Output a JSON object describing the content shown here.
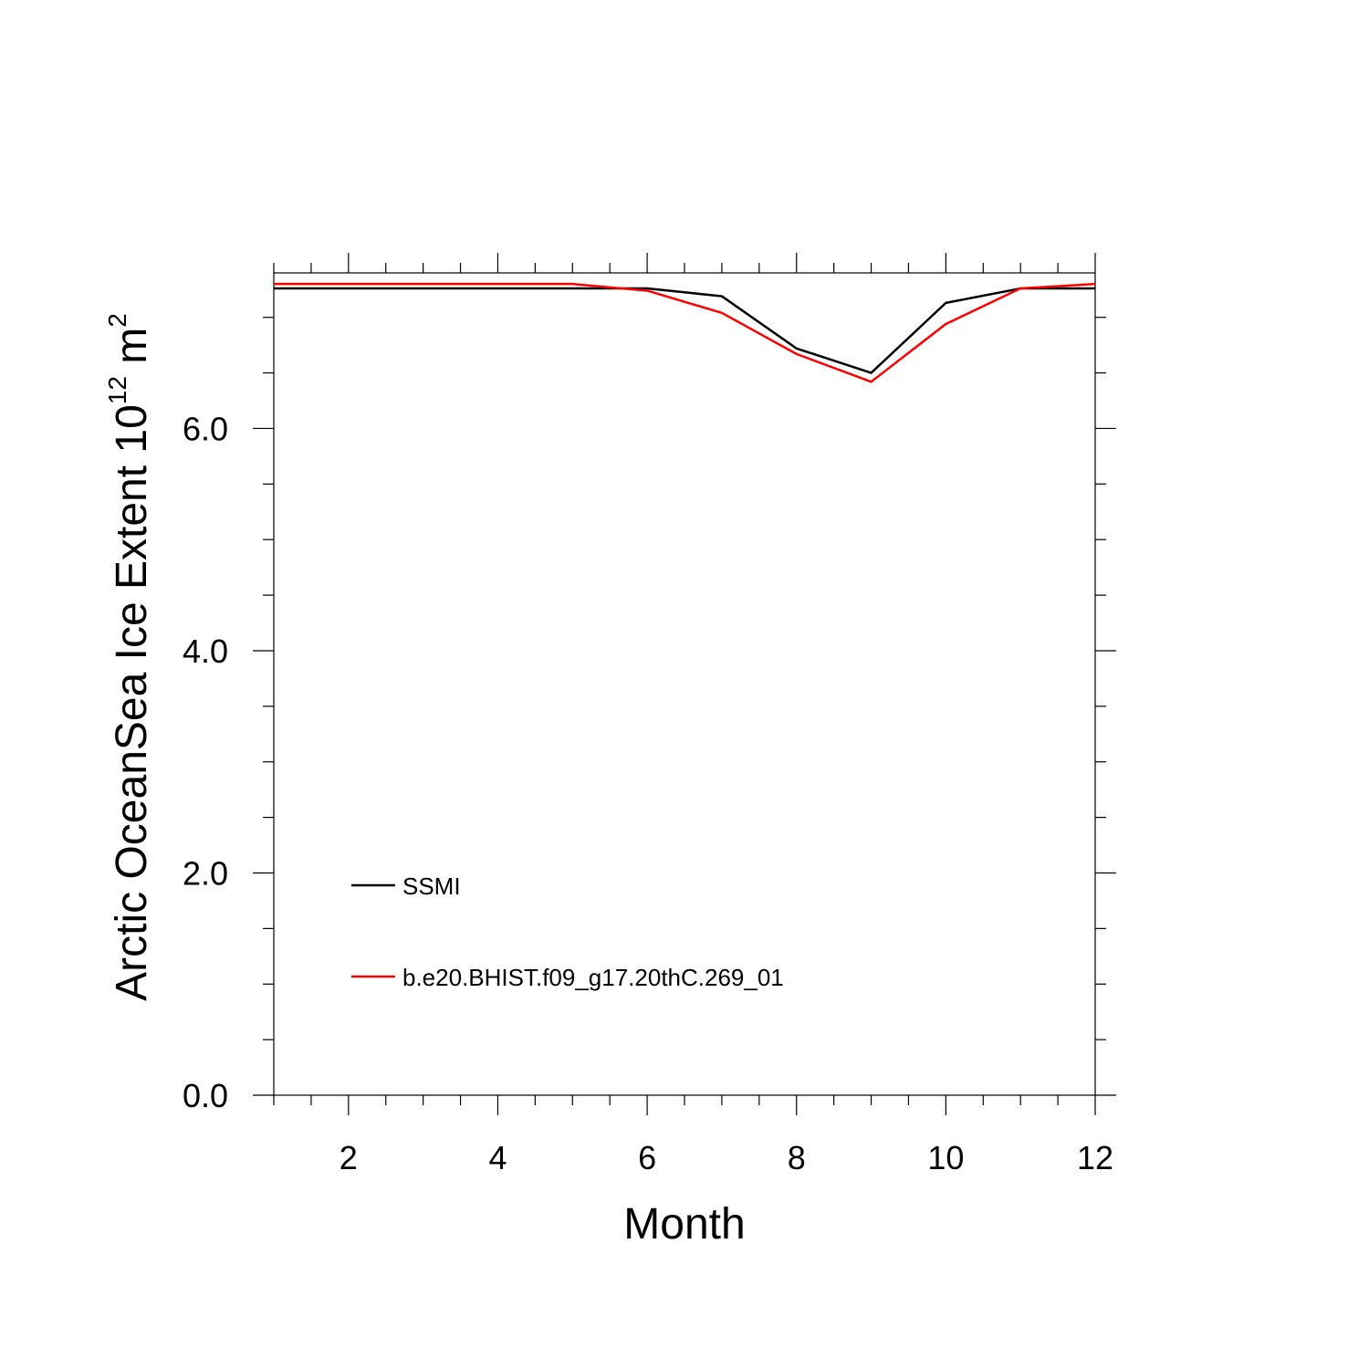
{
  "chart_data": {
    "type": "line",
    "xlabel": "Month",
    "ylabel_base": "Arctic OceanSea Ice Extent 10",
    "ylabel_exp": "12",
    "ylabel_unit": " m",
    "ylabel_unit_exp": "2",
    "xlim": [
      1,
      12
    ],
    "ylim": [
      0,
      7.4
    ],
    "x_ticks": [
      2,
      4,
      6,
      8,
      10,
      12
    ],
    "x_tick_labels": [
      "2",
      "4",
      "6",
      "8",
      "10",
      "12"
    ],
    "y_ticks": [
      0,
      2,
      4,
      6
    ],
    "y_tick_labels": [
      "0.0",
      "2.0",
      "4.0",
      "6.0"
    ],
    "grid": false,
    "legend_position": "bottom-left",
    "x": [
      1,
      2,
      3,
      4,
      5,
      6,
      7,
      8,
      9,
      10,
      11,
      12
    ],
    "series": [
      {
        "name": "SSMI",
        "color": "#000000",
        "values": [
          7.26,
          7.26,
          7.26,
          7.26,
          7.26,
          7.26,
          7.19,
          6.72,
          6.5,
          7.13,
          7.26,
          7.26
        ]
      },
      {
        "name": "b.e20.BHIST.f09_g17.20thC.269_01",
        "color": "#ff0000",
        "values": [
          7.3,
          7.3,
          7.3,
          7.3,
          7.3,
          7.24,
          7.04,
          6.67,
          6.42,
          6.94,
          7.26,
          7.3
        ]
      }
    ]
  }
}
